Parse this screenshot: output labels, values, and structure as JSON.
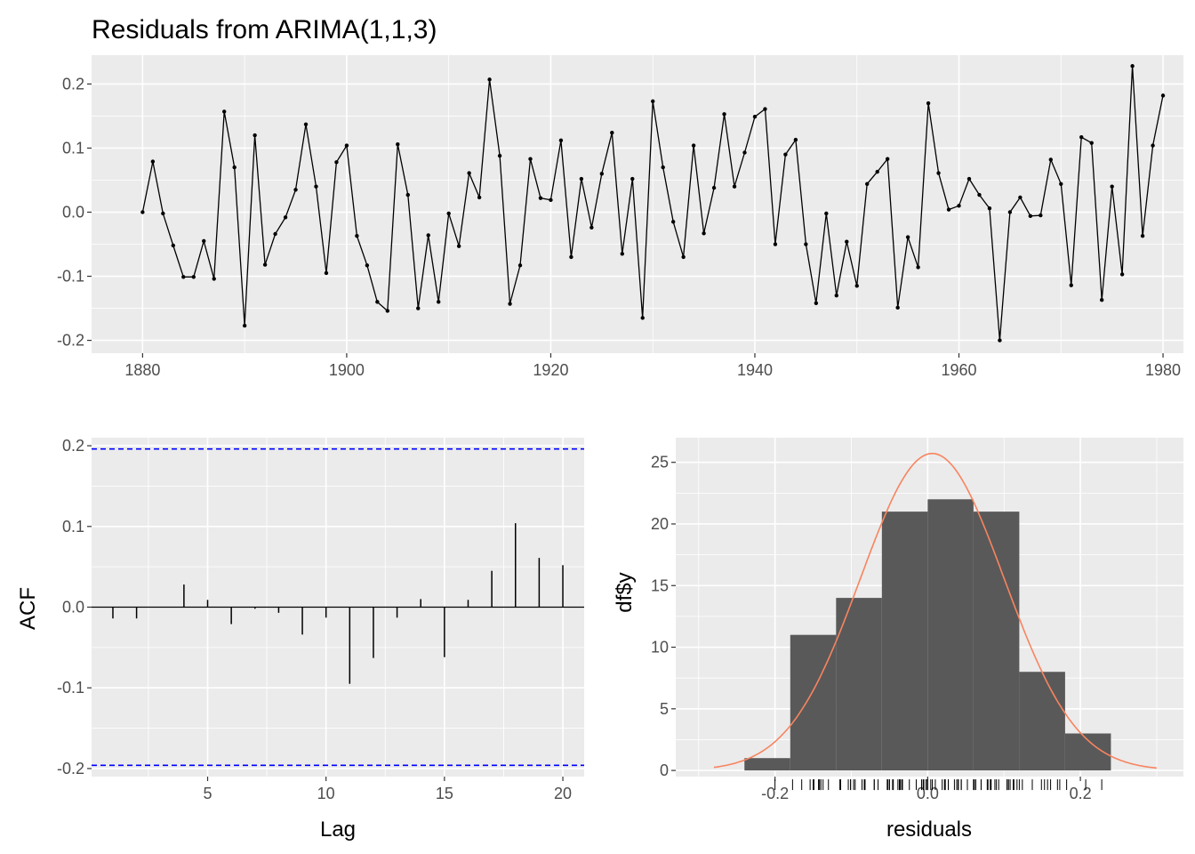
{
  "chart_data": [
    {
      "type": "line",
      "title": "Residuals from ARIMA(1,1,3)",
      "xlabel": "",
      "ylabel": "",
      "xlim": [
        1875,
        1982
      ],
      "ylim": [
        -0.22,
        0.245
      ],
      "xticks": [
        1880,
        1900,
        1920,
        1940,
        1960,
        1980
      ],
      "yticks": [
        -0.2,
        -0.1,
        0.0,
        0.1,
        0.2
      ],
      "ytick_labels": [
        "-0.2",
        "-0.1",
        "0.0",
        "0.1",
        "0.2"
      ],
      "grid": true,
      "x_start": 1880,
      "values": [
        0.0,
        0.079,
        -0.002,
        -0.052,
        -0.101,
        -0.101,
        -0.045,
        -0.104,
        0.157,
        0.07,
        -0.177,
        0.12,
        -0.082,
        -0.034,
        -0.008,
        0.035,
        0.137,
        0.04,
        -0.095,
        0.078,
        0.104,
        -0.037,
        -0.083,
        -0.14,
        -0.154,
        0.106,
        0.027,
        -0.15,
        -0.036,
        -0.14,
        -0.002,
        -0.053,
        0.061,
        0.023,
        0.207,
        0.088,
        -0.143,
        -0.083,
        0.083,
        0.022,
        0.019,
        0.112,
        -0.07,
        0.052,
        -0.024,
        0.06,
        0.124,
        -0.065,
        0.052,
        -0.165,
        0.173,
        0.07,
        -0.015,
        -0.07,
        0.104,
        -0.033,
        0.038,
        0.153,
        0.04,
        0.093,
        0.149,
        0.161,
        -0.05,
        0.09,
        0.113,
        -0.05,
        -0.142,
        -0.002,
        -0.13,
        -0.046,
        -0.115,
        0.044,
        0.063,
        0.083,
        -0.149,
        -0.039,
        -0.086,
        0.17,
        0.061,
        0.004,
        0.01,
        0.052,
        0.027,
        0.006,
        -0.2,
        0.0,
        0.023,
        -0.006,
        -0.005,
        0.082,
        0.044,
        -0.114,
        0.117,
        0.108,
        -0.137,
        0.04,
        -0.097,
        0.228,
        -0.037,
        0.104,
        0.182
      ]
    },
    {
      "type": "bar",
      "title": "",
      "xlabel": "Lag",
      "ylabel": "ACF",
      "xlim": [
        0.1,
        20.9
      ],
      "ylim": [
        -0.21,
        0.21
      ],
      "xticks": [
        5,
        10,
        15,
        20
      ],
      "yticks": [
        -0.2,
        -0.1,
        0.0,
        0.1,
        0.2
      ],
      "ytick_labels": [
        "-0.2",
        "-0.1",
        "0.0",
        "0.1",
        "0.2"
      ],
      "grid": true,
      "lags": [
        1,
        2,
        3,
        4,
        5,
        6,
        7,
        8,
        9,
        10,
        11,
        12,
        13,
        14,
        15,
        16,
        17,
        18,
        19,
        20
      ],
      "values": [
        -0.014,
        -0.014,
        0.0,
        0.028,
        0.009,
        -0.021,
        -0.002,
        -0.007,
        -0.034,
        -0.013,
        -0.095,
        -0.063,
        -0.013,
        0.01,
        -0.062,
        0.009,
        0.045,
        0.104,
        0.061,
        0.052
      ],
      "ci_bounds": [
        0.196,
        -0.196
      ],
      "ci_color": "#0000ff"
    },
    {
      "type": "bar",
      "title": "",
      "xlabel": "residuals",
      "ylabel": "df$y",
      "xlim": [
        -0.33,
        0.335
      ],
      "ylim": [
        -0.5,
        27
      ],
      "xticks": [
        -0.2,
        0.0,
        0.2
      ],
      "xtick_labels": [
        "-0.2",
        "0.0",
        "0.2"
      ],
      "yticks": [
        0,
        5,
        10,
        15,
        20,
        25
      ],
      "grid": true,
      "bin_edges": [
        -0.24,
        -0.18,
        -0.12,
        -0.06,
        0.0,
        0.06,
        0.12,
        0.18,
        0.24
      ],
      "counts": [
        1,
        11,
        14,
        21,
        22,
        21,
        8,
        3
      ],
      "bar_color": "#595959",
      "density_curve": {
        "mean": 0.006,
        "sd": 0.094,
        "n": 101,
        "binwidth": 0.06,
        "x_range": [
          -0.28,
          0.3
        ],
        "color": "#f8845f"
      },
      "rug_values": [
        0.0,
        0.079,
        -0.002,
        -0.052,
        -0.101,
        -0.101,
        -0.045,
        -0.104,
        0.157,
        0.07,
        -0.177,
        0.12,
        -0.082,
        -0.034,
        -0.008,
        0.035,
        0.137,
        0.04,
        -0.095,
        0.078,
        0.104,
        -0.037,
        -0.083,
        -0.14,
        -0.154,
        0.106,
        0.027,
        -0.15,
        -0.036,
        -0.14,
        -0.002,
        -0.053,
        0.061,
        0.023,
        0.207,
        0.088,
        -0.143,
        -0.083,
        0.083,
        0.022,
        0.019,
        0.112,
        -0.07,
        0.052,
        -0.024,
        0.06,
        0.124,
        -0.065,
        0.052,
        -0.165,
        0.173,
        0.07,
        -0.015,
        -0.07,
        0.104,
        -0.033,
        0.038,
        0.153,
        0.04,
        0.093,
        0.149,
        0.161,
        -0.05,
        0.09,
        0.113,
        -0.05,
        -0.142,
        -0.002,
        -0.13,
        -0.046,
        -0.115,
        0.044,
        0.063,
        0.083,
        -0.149,
        -0.039,
        -0.086,
        0.17,
        0.061,
        0.004,
        0.01,
        0.052,
        0.027,
        0.006,
        -0.2,
        0.0,
        0.023,
        -0.006,
        -0.005,
        0.082,
        0.044,
        -0.114,
        0.117,
        0.108,
        -0.137,
        0.04,
        -0.097,
        0.228,
        -0.037,
        0.104,
        0.182
      ]
    }
  ]
}
